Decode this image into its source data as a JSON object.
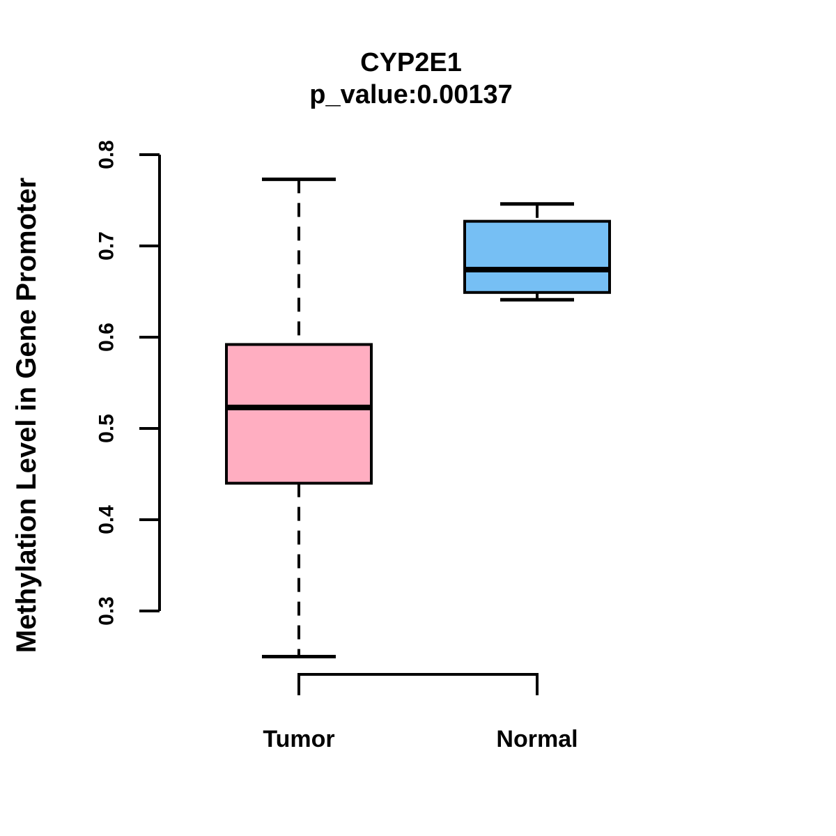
{
  "chart_data": {
    "type": "boxplot",
    "title": "CYP2E1",
    "subtitle": "p_value:0.00137",
    "ylabel": "Methylation Level in Gene Promoter",
    "xlabel": "",
    "categories": [
      "Tumor",
      "Normal"
    ],
    "yticks": [
      0.3,
      0.4,
      0.5,
      0.6,
      0.7,
      0.8
    ],
    "axis_range": [
      0.3,
      0.8
    ],
    "grid": false,
    "legend": "none",
    "whisker_style": "dashed",
    "stroke_color": "#000000",
    "background": "#FFFFFF",
    "series": [
      {
        "name": "Tumor",
        "fill": "#FFAEC1",
        "whisker_low": 0.25,
        "q1": 0.44,
        "median": 0.523,
        "q3": 0.592,
        "whisker_high": 0.773
      },
      {
        "name": "Normal",
        "fill": "#76BFF4",
        "whisker_low": 0.641,
        "q1": 0.649,
        "median": 0.674,
        "q3": 0.727,
        "whisker_high": 0.746
      }
    ]
  }
}
